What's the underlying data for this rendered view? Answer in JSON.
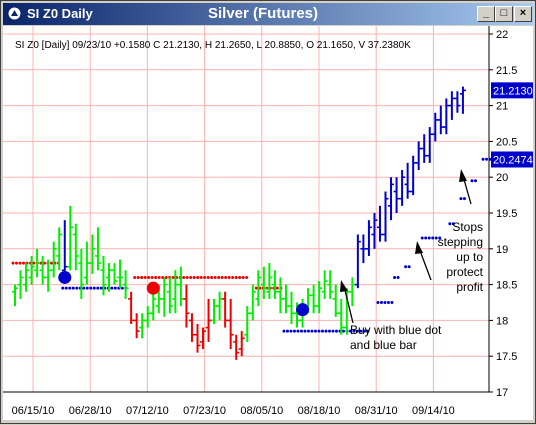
{
  "window": {
    "short_title": "SI Z0 Daily",
    "title": "Silver (Futures)",
    "buttons": [
      "_",
      "□",
      "×"
    ]
  },
  "colors": {
    "up": "#00ee00",
    "down": "#ee0000",
    "blue": "#0000cc",
    "stop_red": "#ee0000",
    "stop_blue": "#0000cc",
    "grid": "#ffb0b0",
    "label_bg": "#0000cc"
  },
  "chart_data": {
    "type": "bar",
    "title": "",
    "info_line": "SI Z0 [Daily] 09/23/10  +0.1580 C 21.2130, H 21.2650, L 20.8850, O 21.1650, V 37.2380K",
    "ylim": [
      17,
      22
    ],
    "y_ticks": [
      "17",
      "17.5",
      "18",
      "18.5",
      "19",
      "19.5",
      "20",
      "20.5",
      "21",
      "21.5",
      "22"
    ],
    "x_ticks": [
      "06/15/10",
      "06/28/10",
      "07/12/10",
      "07/23/10",
      "08/05/10",
      "08/18/10",
      "08/31/10",
      "09/14/10"
    ],
    "bars": [
      {
        "o": 18.4,
        "h": 18.5,
        "l": 18.2,
        "c": 18.45,
        "col": "g"
      },
      {
        "o": 18.5,
        "h": 18.7,
        "l": 18.3,
        "c": 18.6,
        "col": "g"
      },
      {
        "o": 18.5,
        "h": 18.8,
        "l": 18.4,
        "c": 18.7,
        "col": "g"
      },
      {
        "o": 18.6,
        "h": 18.9,
        "l": 18.5,
        "c": 18.75,
        "col": "g"
      },
      {
        "o": 18.7,
        "h": 19.0,
        "l": 18.6,
        "c": 18.8,
        "col": "g"
      },
      {
        "o": 18.7,
        "h": 18.9,
        "l": 18.5,
        "c": 18.6,
        "col": "g"
      },
      {
        "o": 18.6,
        "h": 18.85,
        "l": 18.4,
        "c": 18.7,
        "col": "g"
      },
      {
        "o": 18.7,
        "h": 19.1,
        "l": 18.6,
        "c": 19.0,
        "col": "g"
      },
      {
        "o": 18.9,
        "h": 19.3,
        "l": 18.7,
        "c": 19.2,
        "col": "g"
      },
      {
        "o": 18.7,
        "h": 19.4,
        "l": 18.55,
        "c": 18.75,
        "col": "b"
      },
      {
        "o": 18.75,
        "h": 19.6,
        "l": 18.7,
        "c": 19.3,
        "col": "g"
      },
      {
        "o": 19.2,
        "h": 19.35,
        "l": 18.7,
        "c": 18.9,
        "col": "g"
      },
      {
        "o": 18.8,
        "h": 19.0,
        "l": 18.3,
        "c": 18.5,
        "col": "g"
      },
      {
        "o": 18.6,
        "h": 19.1,
        "l": 18.5,
        "c": 18.8,
        "col": "g"
      },
      {
        "o": 18.8,
        "h": 19.2,
        "l": 18.65,
        "c": 19.0,
        "col": "g"
      },
      {
        "o": 18.9,
        "h": 19.3,
        "l": 18.7,
        "c": 18.8,
        "col": "g"
      },
      {
        "o": 18.7,
        "h": 18.9,
        "l": 18.35,
        "c": 18.5,
        "col": "g"
      },
      {
        "o": 18.6,
        "h": 18.8,
        "l": 18.4,
        "c": 18.7,
        "col": "g"
      },
      {
        "o": 18.7,
        "h": 18.8,
        "l": 18.5,
        "c": 18.55,
        "col": "g"
      },
      {
        "o": 18.6,
        "h": 18.85,
        "l": 18.45,
        "c": 18.6,
        "col": "g"
      },
      {
        "o": 18.5,
        "h": 18.7,
        "l": 18.3,
        "c": 18.45,
        "col": "g"
      },
      {
        "o": 18.3,
        "h": 18.4,
        "l": 17.95,
        "c": 18.0,
        "col": "r"
      },
      {
        "o": 18.0,
        "h": 18.1,
        "l": 17.75,
        "c": 17.85,
        "col": "r"
      },
      {
        "o": 17.9,
        "h": 18.1,
        "l": 17.75,
        "c": 18.0,
        "col": "g"
      },
      {
        "o": 18.0,
        "h": 18.2,
        "l": 17.9,
        "c": 18.1,
        "col": "g"
      },
      {
        "o": 18.1,
        "h": 18.4,
        "l": 18.0,
        "c": 18.3,
        "col": "g"
      },
      {
        "o": 18.2,
        "h": 18.5,
        "l": 18.1,
        "c": 18.3,
        "col": "g"
      },
      {
        "o": 18.3,
        "h": 18.6,
        "l": 18.05,
        "c": 18.5,
        "col": "g"
      },
      {
        "o": 18.4,
        "h": 18.6,
        "l": 18.1,
        "c": 18.2,
        "col": "g"
      },
      {
        "o": 18.3,
        "h": 18.7,
        "l": 18.1,
        "c": 18.5,
        "col": "g"
      },
      {
        "o": 18.5,
        "h": 18.75,
        "l": 18.2,
        "c": 18.3,
        "col": "g"
      },
      {
        "o": 18.3,
        "h": 18.5,
        "l": 17.9,
        "c": 18.1,
        "col": "r"
      },
      {
        "o": 18.0,
        "h": 18.1,
        "l": 17.7,
        "c": 17.8,
        "col": "r"
      },
      {
        "o": 17.8,
        "h": 17.95,
        "l": 17.55,
        "c": 17.65,
        "col": "r"
      },
      {
        "o": 17.7,
        "h": 17.9,
        "l": 17.6,
        "c": 17.85,
        "col": "r"
      },
      {
        "o": 17.9,
        "h": 18.3,
        "l": 17.7,
        "c": 18.0,
        "col": "r"
      },
      {
        "o": 18.0,
        "h": 18.3,
        "l": 17.95,
        "c": 18.2,
        "col": "g"
      },
      {
        "o": 18.2,
        "h": 18.4,
        "l": 18.0,
        "c": 18.3,
        "col": "g"
      },
      {
        "o": 18.3,
        "h": 18.4,
        "l": 17.9,
        "c": 18.0,
        "col": "r"
      },
      {
        "o": 18.0,
        "h": 18.3,
        "l": 17.6,
        "c": 17.8,
        "col": "r"
      },
      {
        "o": 17.7,
        "h": 17.8,
        "l": 17.45,
        "c": 17.55,
        "col": "r"
      },
      {
        "o": 17.6,
        "h": 17.85,
        "l": 17.5,
        "c": 17.75,
        "col": "r"
      },
      {
        "o": 17.8,
        "h": 18.2,
        "l": 17.7,
        "c": 18.1,
        "col": "g"
      },
      {
        "o": 18.1,
        "h": 18.5,
        "l": 18.0,
        "c": 18.4,
        "col": "g"
      },
      {
        "o": 18.3,
        "h": 18.7,
        "l": 18.2,
        "c": 18.6,
        "col": "g"
      },
      {
        "o": 18.5,
        "h": 18.75,
        "l": 18.3,
        "c": 18.45,
        "col": "g"
      },
      {
        "o": 18.4,
        "h": 18.8,
        "l": 18.3,
        "c": 18.6,
        "col": "g"
      },
      {
        "o": 18.5,
        "h": 18.7,
        "l": 18.3,
        "c": 18.4,
        "col": "g"
      },
      {
        "o": 18.4,
        "h": 18.6,
        "l": 18.1,
        "c": 18.3,
        "col": "g"
      },
      {
        "o": 18.3,
        "h": 18.5,
        "l": 18.1,
        "c": 18.2,
        "col": "g"
      },
      {
        "o": 18.2,
        "h": 18.4,
        "l": 17.95,
        "c": 18.1,
        "col": "g"
      },
      {
        "o": 18.1,
        "h": 18.25,
        "l": 17.9,
        "c": 18.0,
        "col": "g"
      },
      {
        "o": 18.0,
        "h": 18.3,
        "l": 17.9,
        "c": 18.2,
        "col": "g"
      },
      {
        "o": 18.2,
        "h": 18.45,
        "l": 18.1,
        "c": 18.35,
        "col": "g"
      },
      {
        "o": 18.35,
        "h": 18.5,
        "l": 18.1,
        "c": 18.2,
        "col": "g"
      },
      {
        "o": 18.2,
        "h": 18.55,
        "l": 18.1,
        "c": 18.45,
        "col": "g"
      },
      {
        "o": 18.4,
        "h": 18.7,
        "l": 18.3,
        "c": 18.55,
        "col": "g"
      },
      {
        "o": 18.5,
        "h": 18.7,
        "l": 18.3,
        "c": 18.4,
        "col": "g"
      },
      {
        "o": 18.3,
        "h": 18.5,
        "l": 18.05,
        "c": 18.1,
        "col": "g"
      },
      {
        "o": 18.1,
        "h": 18.3,
        "l": 17.8,
        "c": 17.9,
        "col": "g"
      },
      {
        "o": 17.9,
        "h": 18.45,
        "l": 17.8,
        "c": 18.4,
        "col": "g"
      },
      {
        "o": 18.4,
        "h": 18.6,
        "l": 18.2,
        "c": 18.5,
        "col": "g"
      },
      {
        "o": 18.5,
        "h": 19.2,
        "l": 18.45,
        "c": 19.1,
        "col": "b"
      },
      {
        "o": 19.0,
        "h": 19.2,
        "l": 18.8,
        "c": 19.0,
        "col": "b"
      },
      {
        "o": 19.0,
        "h": 19.4,
        "l": 18.9,
        "c": 19.3,
        "col": "b"
      },
      {
        "o": 19.2,
        "h": 19.5,
        "l": 19.0,
        "c": 19.4,
        "col": "b"
      },
      {
        "o": 19.3,
        "h": 19.6,
        "l": 19.1,
        "c": 19.2,
        "col": "b"
      },
      {
        "o": 19.2,
        "h": 19.8,
        "l": 19.1,
        "c": 19.7,
        "col": "b"
      },
      {
        "o": 19.6,
        "h": 20.0,
        "l": 19.4,
        "c": 19.9,
        "col": "b"
      },
      {
        "o": 19.8,
        "h": 20.0,
        "l": 19.5,
        "c": 19.7,
        "col": "b"
      },
      {
        "o": 19.7,
        "h": 20.1,
        "l": 19.6,
        "c": 20.0,
        "col": "b"
      },
      {
        "o": 19.9,
        "h": 20.2,
        "l": 19.7,
        "c": 19.8,
        "col": "b"
      },
      {
        "o": 19.8,
        "h": 20.3,
        "l": 19.75,
        "c": 20.2,
        "col": "b"
      },
      {
        "o": 20.2,
        "h": 20.5,
        "l": 20.1,
        "c": 20.4,
        "col": "b"
      },
      {
        "o": 20.4,
        "h": 20.6,
        "l": 20.2,
        "c": 20.3,
        "col": "b"
      },
      {
        "o": 20.3,
        "h": 20.7,
        "l": 20.2,
        "c": 20.6,
        "col": "b"
      },
      {
        "o": 20.6,
        "h": 20.9,
        "l": 20.5,
        "c": 20.8,
        "col": "b"
      },
      {
        "o": 20.8,
        "h": 21.0,
        "l": 20.6,
        "c": 20.7,
        "col": "b"
      },
      {
        "o": 20.7,
        "h": 21.1,
        "l": 20.6,
        "c": 21.0,
        "col": "b"
      },
      {
        "o": 21.0,
        "h": 21.2,
        "l": 20.8,
        "c": 21.1,
        "col": "b"
      },
      {
        "o": 21.1,
        "h": 21.2,
        "l": 20.9,
        "c": 21.0,
        "col": "b"
      },
      {
        "o": 21.165,
        "h": 21.265,
        "l": 20.885,
        "c": 21.213,
        "col": "b"
      }
    ],
    "stops": [
      {
        "from": 0,
        "to": 8,
        "value": 18.8,
        "color": "r"
      },
      {
        "from": 9,
        "to": 20,
        "value": 18.45,
        "color": "b"
      },
      {
        "from": 22,
        "to": 42,
        "value": 18.6,
        "color": "r"
      },
      {
        "from": 44,
        "to": 48,
        "value": 18.45,
        "color": "r"
      },
      {
        "from": 49,
        "to": 64,
        "value": 17.85,
        "color": "b"
      },
      {
        "from": 66,
        "to": 68,
        "value": 18.25,
        "color": "b"
      },
      {
        "from": 69,
        "to": 69,
        "value": 18.6,
        "color": "b"
      },
      {
        "from": 71,
        "to": 71,
        "value": 18.75,
        "color": "b"
      },
      {
        "from": 74,
        "to": 77,
        "value": 19.15,
        "color": "b"
      },
      {
        "from": 79,
        "to": 79,
        "value": 19.35,
        "color": "b"
      },
      {
        "from": 81,
        "to": 81,
        "value": 19.7,
        "color": "b"
      },
      {
        "from": 83,
        "to": 83,
        "value": 19.95,
        "color": "b"
      },
      {
        "from": 85,
        "to": 86,
        "value": 20.25,
        "color": "b"
      }
    ],
    "signals": [
      {
        "bar": 9,
        "value": 18.6,
        "color": "b"
      },
      {
        "bar": 25,
        "value": 18.45,
        "color": "r"
      },
      {
        "bar": 52,
        "value": 18.15,
        "color": "b"
      }
    ],
    "price_labels": [
      {
        "text": "21.2130",
        "value": 21.213
      },
      {
        "text": "20.2474",
        "value": 20.2474
      }
    ],
    "annotations": {
      "buy": [
        "Buy with blue dot",
        "and blue bar"
      ],
      "stops": [
        "Stops",
        "stepping",
        "up to",
        "protect",
        "profit"
      ]
    }
  }
}
